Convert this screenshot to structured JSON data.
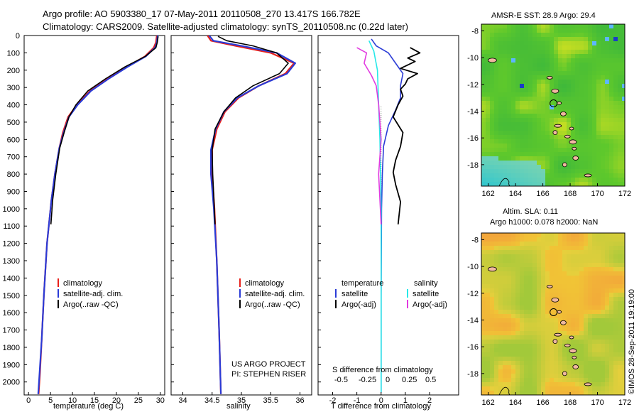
{
  "header": {
    "line1": "Argo profile: AO 5903380_17 07-May-2011 20110508_270 13.417S 166.782E",
    "line2": "Climatology: CARS2009. Satellite-adjusted climatology: synTS_20110508.nc (0.22d later)"
  },
  "colors": {
    "climatology": "#e8201a",
    "satellite": "#2a3bd6",
    "argo": "#000000",
    "salinity_satellite": "#27e8e8",
    "salinity_argo": "#e23ae0",
    "sst_map_green": "#5ec82c",
    "sla_map_yellow": "#f1c436"
  },
  "depth_axis": {
    "ticks": [
      0,
      100,
      200,
      300,
      400,
      500,
      600,
      700,
      800,
      900,
      1000,
      1100,
      1200,
      1300,
      1400,
      1500,
      1600,
      1700,
      1800,
      1900,
      2000
    ],
    "ylim": [
      2075,
      0
    ]
  },
  "chart_data": [
    {
      "id": "temperature",
      "type": "line",
      "xlabel": "temperature (deg C)",
      "ylabel": "",
      "xlim": [
        -1,
        31
      ],
      "xticks": [
        0,
        5,
        10,
        15,
        20,
        25,
        30
      ],
      "legend": [
        "climatology",
        "satellite-adj. clim.",
        "Argo(..raw -QC)"
      ],
      "series": [
        {
          "name": "climatology",
          "x": [
            29.2,
            29.0,
            28.5,
            26.5,
            22.5,
            18.0,
            14.0,
            11.0,
            9.0,
            7.8,
            7.0,
            6.0,
            5.2,
            4.6,
            4.2,
            3.5,
            3.0,
            2.6,
            2.3
          ],
          "y": [
            0,
            40,
            70,
            120,
            180,
            250,
            320,
            400,
            470,
            560,
            650,
            800,
            950,
            1100,
            1200,
            1500,
            1750,
            1950,
            2070
          ]
        },
        {
          "name": "satellite-adj. clim.",
          "x": [
            29.4,
            29.2,
            28.8,
            26.7,
            22.6,
            18.2,
            14.2,
            11.2,
            9.2,
            8.0,
            7.0,
            6.0,
            5.2,
            4.6,
            4.2,
            3.5,
            3.0,
            2.5,
            2.2
          ],
          "y": [
            0,
            40,
            70,
            120,
            180,
            250,
            320,
            400,
            470,
            560,
            650,
            800,
            950,
            1100,
            1200,
            1500,
            1750,
            1950,
            2070
          ]
        },
        {
          "name": "Argo(..raw -QC)",
          "x": [
            29.5,
            29.3,
            29.0,
            26.6,
            22.0,
            17.5,
            13.5,
            10.8,
            9.2,
            8.1,
            7.1,
            6.2,
            5.5,
            5.1
          ],
          "y": [
            5,
            40,
            70,
            120,
            180,
            250,
            320,
            400,
            470,
            560,
            650,
            800,
            950,
            1090
          ]
        }
      ]
    },
    {
      "id": "salinity",
      "type": "line",
      "xlabel": "salinity",
      "ylabel": "",
      "xlim": [
        33.8,
        36.2
      ],
      "xticks": [
        34,
        34.5,
        35,
        35.5,
        36
      ],
      "legend": [
        "climatology",
        "satellite-adj. clim.",
        "Argo(..raw -QC)"
      ],
      "series": [
        {
          "name": "climatology",
          "x": [
            34.42,
            34.48,
            34.9,
            35.5,
            35.9,
            35.75,
            35.3,
            34.95,
            34.72,
            34.58,
            34.5,
            34.5,
            34.54,
            34.58,
            34.62,
            34.65
          ],
          "y": [
            0,
            30,
            60,
            100,
            160,
            220,
            290,
            360,
            440,
            540,
            660,
            800,
            1000,
            1300,
            1700,
            2070
          ]
        },
        {
          "name": "satellite-adj. clim.",
          "x": [
            34.45,
            34.52,
            35.0,
            35.6,
            35.92,
            35.78,
            35.3,
            34.93,
            34.7,
            34.56,
            34.48,
            34.48,
            34.53,
            34.58,
            34.62,
            34.65
          ],
          "y": [
            0,
            30,
            60,
            100,
            160,
            220,
            290,
            360,
            440,
            540,
            660,
            800,
            1000,
            1300,
            1700,
            2070
          ]
        },
        {
          "name": "Argo(..raw -QC)",
          "x": [
            34.6,
            34.75,
            35.2,
            35.6,
            35.8,
            35.65,
            35.2,
            34.9,
            34.7,
            34.55,
            34.5,
            34.51,
            34.55
          ],
          "y": [
            5,
            30,
            60,
            100,
            160,
            220,
            290,
            360,
            440,
            540,
            660,
            800,
            1090
          ]
        }
      ]
    },
    {
      "id": "differences",
      "type": "line",
      "xlabel_top": "S difference from climatology",
      "xticks_top": [
        "-0.5",
        "-0.25",
        "0",
        "0.25",
        "0.5"
      ],
      "xlabel": "T difference from climatology",
      "xlim": [
        -2.6,
        3.2
      ],
      "xticks": [
        -2,
        -1,
        0,
        1,
        2
      ],
      "legend_temperature_title": "temperature",
      "legend_salinity_title": "salinity",
      "legend_entries": [
        "satellite",
        "Argo(-adj)",
        "satellite",
        "Argo(-adj)"
      ],
      "annotation": [
        "US ARGO PROJECT",
        "PI: STEPHEN RISER"
      ],
      "series": [
        {
          "name": "satellite",
          "x": [
            -0.4,
            -0.2,
            0.3,
            0.6,
            0.9,
            0.8,
            0.8,
            0.6,
            0.3,
            0.1,
            0.05,
            0.02,
            0.0,
            0.0
          ],
          "y": [
            20,
            60,
            100,
            160,
            220,
            290,
            360,
            430,
            520,
            640,
            800,
            1000,
            1500,
            2060
          ]
        },
        {
          "name": "Argo(-adj)",
          "x": [
            1.2,
            1.6,
            1.1,
            1.4,
            0.8,
            1.5,
            1.1,
            1.0,
            0.8,
            0.9,
            0.7,
            0.5,
            0.9,
            0.8,
            0.6,
            0.5,
            0.6,
            0.8,
            0.7
          ],
          "y": [
            70,
            100,
            130,
            150,
            190,
            220,
            250,
            280,
            310,
            350,
            400,
            470,
            560,
            640,
            720,
            790,
            860,
            960,
            1090
          ]
        },
        {
          "name": "satellite",
          "x": [
            -0.5,
            -0.3,
            -0.15,
            -0.1,
            -0.05,
            0.0,
            0.0
          ],
          "y": [
            30,
            90,
            200,
            400,
            600,
            1000,
            2060
          ]
        },
        {
          "name": "Argo(-adj)",
          "x": [
            -1.0,
            -0.6,
            -0.7,
            -0.4,
            -0.2,
            -0.1,
            0.0,
            -0.1,
            0.0
          ],
          "y": [
            70,
            100,
            160,
            230,
            290,
            400,
            600,
            800,
            1090
          ]
        }
      ]
    },
    {
      "id": "sst-map",
      "type": "heatmap",
      "title": "AMSR-E SST: 28.9 Argo: 29.4",
      "xticks": [
        162,
        164,
        166,
        168,
        170,
        172
      ],
      "yticks": [
        -8,
        -10,
        -12,
        -14,
        -16,
        -18
      ],
      "xlim": [
        161.5,
        172
      ],
      "ylim": [
        -19.6,
        -7.5
      ]
    },
    {
      "id": "sla-map",
      "type": "heatmap",
      "title": "Altim. SLA: 0.11",
      "subtitle": "Argo h1000: 0.078 h2000: NaN",
      "xticks": [
        162,
        164,
        166,
        168,
        170,
        172
      ],
      "yticks": [
        -8,
        -10,
        -12,
        -14,
        -16,
        -18
      ],
      "xlim": [
        161.5,
        172
      ],
      "ylim": [
        -19.6,
        -7.5
      ]
    }
  ],
  "footer": {
    "credit": "©IMOS 28-Sep-2011 19:19:00"
  }
}
